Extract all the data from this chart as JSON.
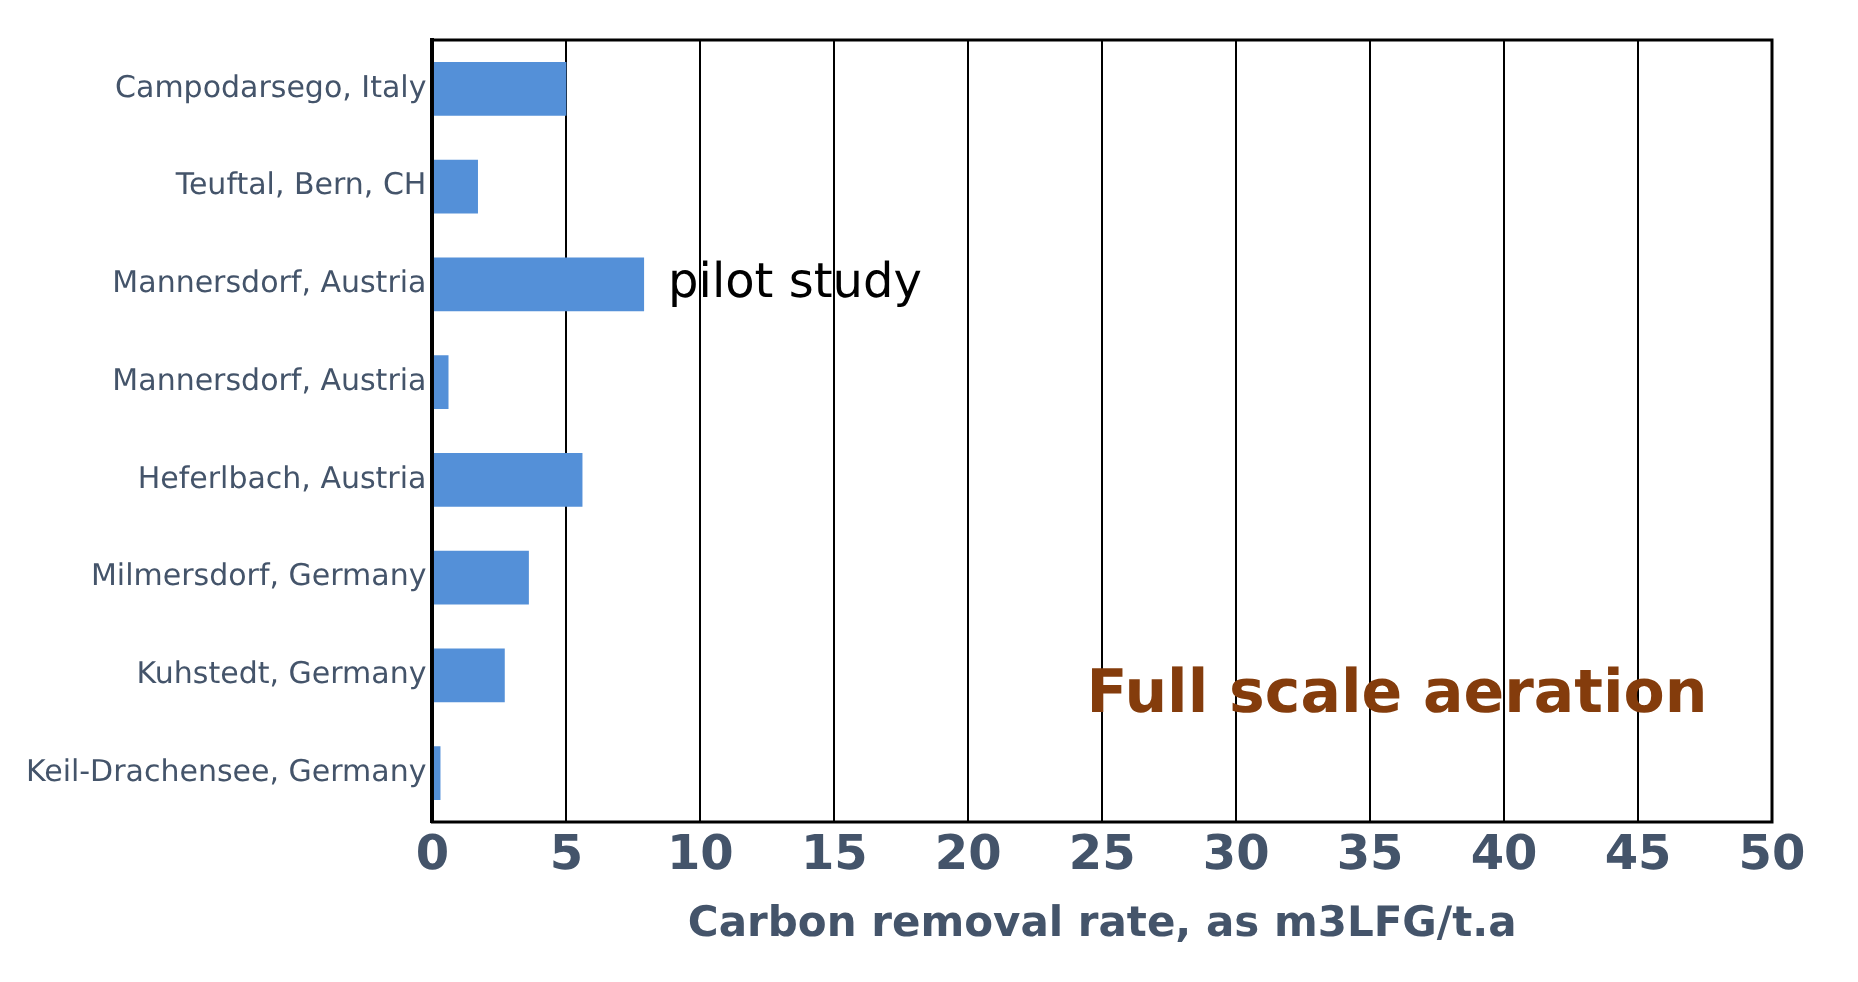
{
  "chart_data": {
    "type": "bar",
    "orientation": "horizontal",
    "xlabel": "Carbon removal rate, as m3LFG/t.a",
    "categories": [
      "Campodarsego, Italy",
      "Teuftal, Bern, CH",
      "Mannersdorf, Austria",
      "Mannersdorf, Austria",
      "Heferlbach, Austria",
      "Milmersdorf, Germany",
      "Kuhstedt, Germany",
      "Keil-Drachensee, Germany"
    ],
    "values": [
      5.0,
      1.7,
      7.9,
      0.6,
      5.6,
      3.6,
      2.7,
      0.3
    ],
    "color": "#5490d8",
    "xlim": [
      0,
      50
    ],
    "xticks": [
      0,
      5,
      10,
      15,
      20,
      25,
      30,
      35,
      40,
      45,
      50
    ],
    "grid": "x",
    "legend": false,
    "annotations": [
      {
        "text": "pilot study",
        "x": 7.9,
        "y": "Mannersdorf, Austria"
      },
      "Full scale aeration"
    ]
  }
}
